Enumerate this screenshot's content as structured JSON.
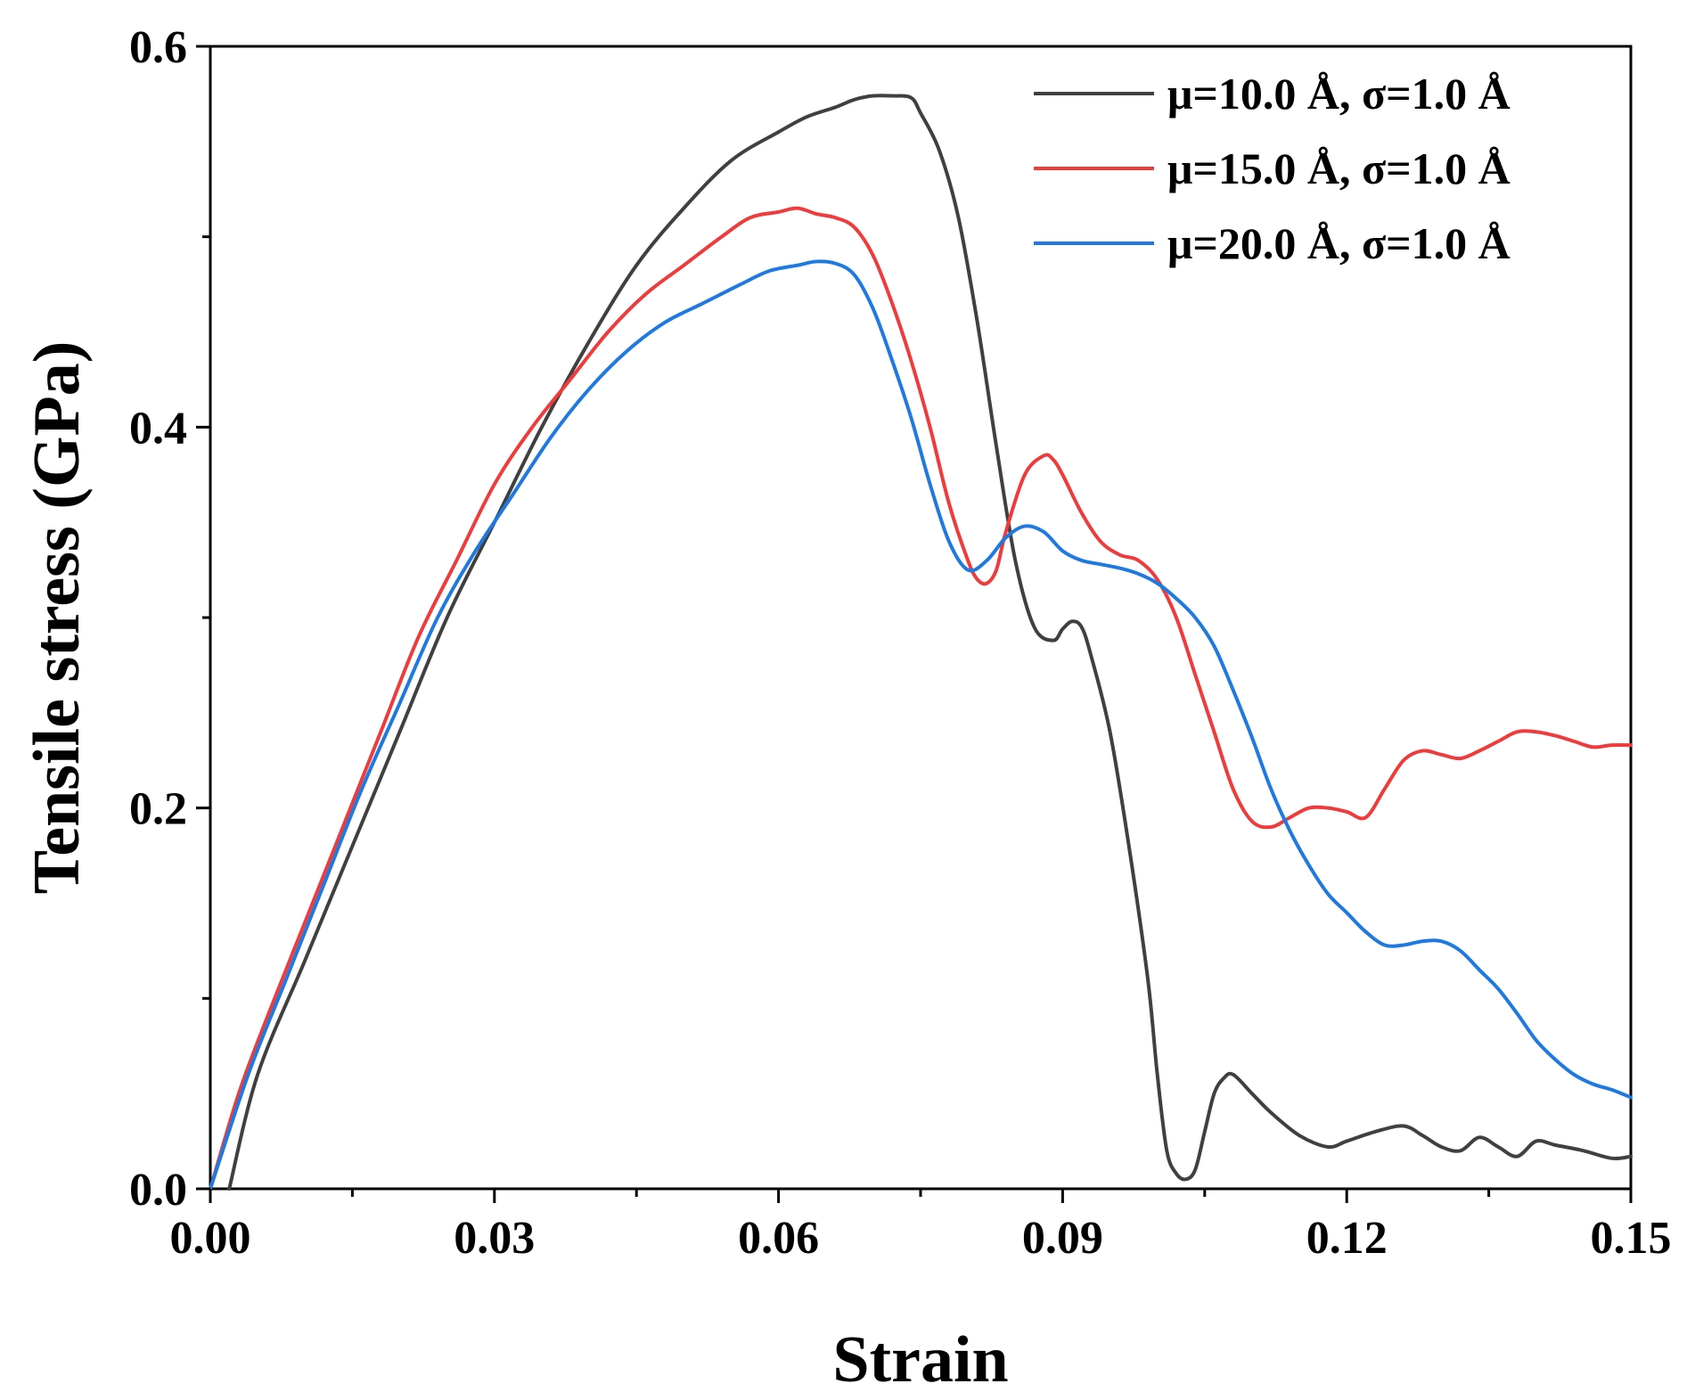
{
  "chart_data": {
    "type": "line",
    "title": "",
    "xlabel": "Strain",
    "ylabel": "Tensile stress (GPa)",
    "xlim": [
      0,
      0.15
    ],
    "ylim": [
      0,
      0.6
    ],
    "xticks": [
      0.0,
      0.03,
      0.06,
      0.09,
      0.12,
      0.15
    ],
    "xtick_labels": [
      "0.00",
      "0.03",
      "0.06",
      "0.09",
      "0.12",
      "0.15"
    ],
    "yticks": [
      0.0,
      0.2,
      0.4,
      0.6
    ],
    "ytick_labels": [
      "0.0",
      "0.2",
      "0.4",
      "0.6"
    ],
    "grid": false,
    "legend_position": "top-right",
    "series": [
      {
        "name": "μ=10.0 Å, σ=1.0 Å",
        "color": "#404040",
        "x": [
          0.002,
          0.005,
          0.01,
          0.015,
          0.02,
          0.025,
          0.03,
          0.035,
          0.04,
          0.045,
          0.05,
          0.055,
          0.06,
          0.063,
          0.066,
          0.068,
          0.07,
          0.072,
          0.074,
          0.075,
          0.077,
          0.079,
          0.081,
          0.083,
          0.085,
          0.087,
          0.089,
          0.09,
          0.091,
          0.092,
          0.093,
          0.095,
          0.097,
          0.099,
          0.1,
          0.101,
          0.102,
          0.103,
          0.104,
          0.105,
          0.106,
          0.107,
          0.108,
          0.11,
          0.112,
          0.115,
          0.118,
          0.12,
          0.123,
          0.126,
          0.128,
          0.13,
          0.132,
          0.134,
          0.136,
          0.138,
          0.14,
          0.142,
          0.145,
          0.148,
          0.15
        ],
        "y": [
          0.0,
          0.06,
          0.12,
          0.18,
          0.24,
          0.3,
          0.35,
          0.4,
          0.445,
          0.485,
          0.515,
          0.54,
          0.555,
          0.563,
          0.568,
          0.572,
          0.574,
          0.574,
          0.573,
          0.565,
          0.545,
          0.51,
          0.455,
          0.39,
          0.33,
          0.295,
          0.288,
          0.294,
          0.298,
          0.295,
          0.28,
          0.24,
          0.18,
          0.11,
          0.06,
          0.02,
          0.008,
          0.005,
          0.01,
          0.03,
          0.05,
          0.058,
          0.06,
          0.05,
          0.04,
          0.028,
          0.022,
          0.025,
          0.03,
          0.033,
          0.028,
          0.022,
          0.02,
          0.027,
          0.022,
          0.017,
          0.025,
          0.023,
          0.02,
          0.016,
          0.017
        ]
      },
      {
        "name": "μ=15.0 Å, σ=1.0 Å",
        "color": "#ef3b3b",
        "x": [
          0.0,
          0.003,
          0.006,
          0.01,
          0.014,
          0.018,
          0.022,
          0.026,
          0.03,
          0.034,
          0.038,
          0.042,
          0.046,
          0.05,
          0.054,
          0.057,
          0.06,
          0.062,
          0.064,
          0.066,
          0.068,
          0.07,
          0.072,
          0.074,
          0.076,
          0.078,
          0.08,
          0.081,
          0.082,
          0.083,
          0.084,
          0.086,
          0.088,
          0.089,
          0.09,
          0.092,
          0.094,
          0.096,
          0.098,
          0.1,
          0.102,
          0.104,
          0.106,
          0.108,
          0.11,
          0.112,
          0.114,
          0.116,
          0.118,
          0.12,
          0.122,
          0.124,
          0.126,
          0.128,
          0.13,
          0.132,
          0.134,
          0.136,
          0.138,
          0.14,
          0.142,
          0.144,
          0.146,
          0.148,
          0.15
        ],
        "y": [
          0.0,
          0.05,
          0.09,
          0.14,
          0.19,
          0.24,
          0.29,
          0.33,
          0.37,
          0.4,
          0.425,
          0.45,
          0.47,
          0.485,
          0.5,
          0.51,
          0.513,
          0.515,
          0.512,
          0.51,
          0.505,
          0.49,
          0.465,
          0.435,
          0.4,
          0.36,
          0.33,
          0.32,
          0.318,
          0.325,
          0.345,
          0.375,
          0.385,
          0.383,
          0.375,
          0.355,
          0.34,
          0.333,
          0.33,
          0.32,
          0.3,
          0.27,
          0.24,
          0.21,
          0.193,
          0.19,
          0.195,
          0.2,
          0.2,
          0.198,
          0.195,
          0.21,
          0.225,
          0.23,
          0.228,
          0.226,
          0.23,
          0.235,
          0.24,
          0.24,
          0.238,
          0.235,
          0.232,
          0.233,
          0.233
        ]
      },
      {
        "name": "μ=20.0 Å, σ=1.0 Å",
        "color": "#1e7ae0",
        "x": [
          0.0,
          0.004,
          0.008,
          0.012,
          0.016,
          0.02,
          0.024,
          0.028,
          0.032,
          0.036,
          0.04,
          0.044,
          0.048,
          0.052,
          0.056,
          0.059,
          0.062,
          0.064,
          0.066,
          0.068,
          0.07,
          0.072,
          0.074,
          0.076,
          0.078,
          0.08,
          0.082,
          0.084,
          0.086,
          0.088,
          0.09,
          0.092,
          0.094,
          0.096,
          0.098,
          0.1,
          0.102,
          0.104,
          0.106,
          0.108,
          0.11,
          0.112,
          0.114,
          0.116,
          0.118,
          0.12,
          0.122,
          0.124,
          0.126,
          0.128,
          0.13,
          0.132,
          0.134,
          0.136,
          0.138,
          0.14,
          0.142,
          0.144,
          0.146,
          0.148,
          0.15
        ],
        "y": [
          0.0,
          0.06,
          0.11,
          0.16,
          0.21,
          0.255,
          0.3,
          0.335,
          0.365,
          0.395,
          0.42,
          0.44,
          0.455,
          0.465,
          0.475,
          0.482,
          0.485,
          0.487,
          0.486,
          0.48,
          0.462,
          0.435,
          0.405,
          0.37,
          0.34,
          0.325,
          0.33,
          0.342,
          0.348,
          0.345,
          0.335,
          0.33,
          0.328,
          0.326,
          0.323,
          0.318,
          0.31,
          0.3,
          0.285,
          0.262,
          0.237,
          0.21,
          0.188,
          0.17,
          0.155,
          0.145,
          0.135,
          0.128,
          0.128,
          0.13,
          0.13,
          0.125,
          0.115,
          0.105,
          0.092,
          0.078,
          0.068,
          0.06,
          0.055,
          0.052,
          0.048
        ]
      }
    ]
  }
}
